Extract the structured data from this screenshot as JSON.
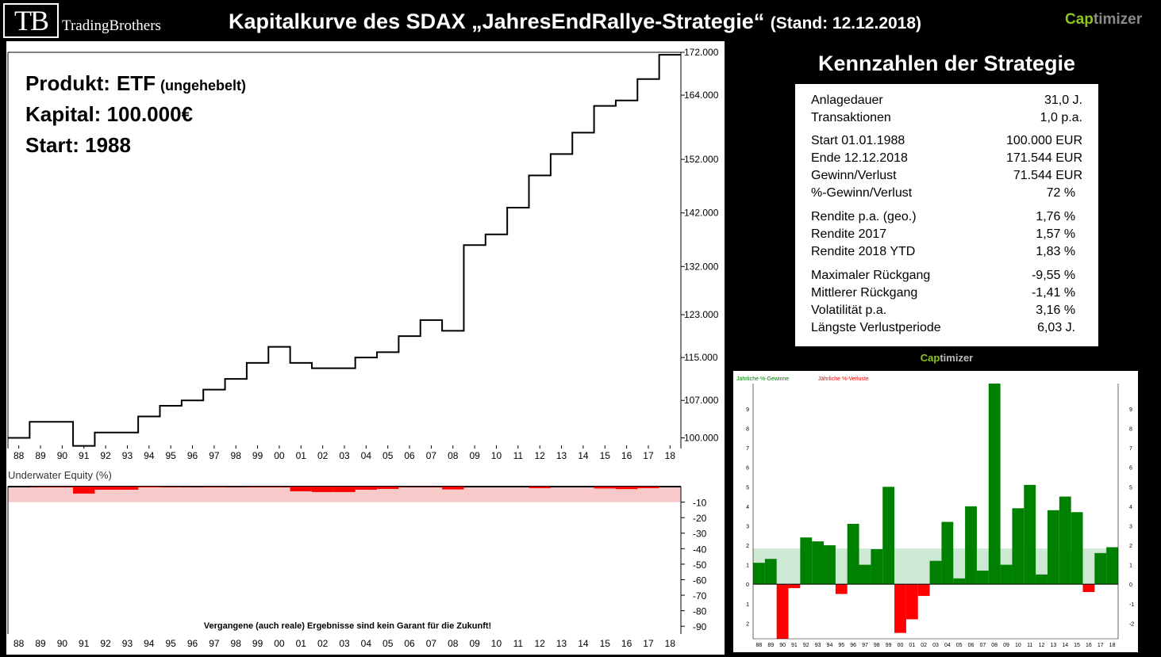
{
  "header": {
    "logo_mark": "TB",
    "logo_name": "TradingBrothers",
    "title": "Kapitalkurve des SDAX „JahresEndRallye-Strategie“",
    "stand": "(Stand: 12.12.2018)",
    "brand_cap": "Cap",
    "brand_rest": "timizer"
  },
  "info": {
    "product_label": "Produkt:",
    "product_value": "ETF",
    "product_note": "(ungehebelt)",
    "capital": "Kapital: 100.000€",
    "start": "Start: 1988"
  },
  "kennzahlen": {
    "title": "Kennzahlen der Strategie",
    "rows": [
      {
        "label": "Anlagedauer",
        "value": "31,0 J."
      },
      {
        "label": "Transaktionen",
        "value": "1,0 p.a."
      },
      {
        "label": "Start  01.01.1988",
        "value": "100.000 EUR"
      },
      {
        "label": "Ende 12.12.2018",
        "value": "171.544 EUR"
      },
      {
        "label": "Gewinn/Verlust",
        "value": "71.544 EUR"
      },
      {
        "label": "%-Gewinn/Verlust",
        "value": "72 %  "
      },
      {
        "label": "Rendite p.a. (geo.)",
        "value": "1,76 %  "
      },
      {
        "label": "Rendite 2017",
        "value": "1,57 %  "
      },
      {
        "label": "Rendite 2018 YTD",
        "value": "1,83 %  "
      },
      {
        "label": "Maximaler Rückgang",
        "value": "-9,55 %  "
      },
      {
        "label": "Mittlerer Rückgang",
        "value": "-1,41 %  "
      },
      {
        "label": "Volatilität p.a.",
        "value": "3,16 %  "
      },
      {
        "label": "Längste Verlustperiode",
        "value": "6,03 J.  "
      }
    ],
    "brand_cap": "Cap",
    "brand_rest": "timizer"
  },
  "chart_data": [
    {
      "type": "line",
      "name": "equity",
      "x": [
        "88",
        "89",
        "90",
        "91",
        "92",
        "93",
        "94",
        "95",
        "96",
        "97",
        "98",
        "99",
        "00",
        "01",
        "02",
        "03",
        "04",
        "05",
        "06",
        "07",
        "08",
        "09",
        "10",
        "11",
        "12",
        "13",
        "14",
        "15",
        "16",
        "17",
        "18"
      ],
      "values": [
        100000,
        103000,
        103000,
        98500,
        101000,
        101000,
        104000,
        106000,
        107000,
        109000,
        111000,
        114000,
        117000,
        114000,
        113000,
        113000,
        115000,
        116000,
        119000,
        122000,
        120000,
        136000,
        138000,
        143000,
        149000,
        153000,
        157000,
        162000,
        163000,
        167000,
        171544
      ],
      "yticks": [
        "100.000",
        "107.000",
        "115.000",
        "123.000",
        "132.000",
        "142.000",
        "152.000",
        "164.000",
        "172.000"
      ],
      "ylim": [
        98000,
        172000
      ],
      "color": "#000000"
    },
    {
      "type": "area",
      "name": "underwater",
      "title": "Underwater Equity (%)",
      "x": [
        "88",
        "89",
        "90",
        "91",
        "92",
        "93",
        "94",
        "95",
        "96",
        "97",
        "98",
        "99",
        "00",
        "01",
        "02",
        "03",
        "04",
        "05",
        "06",
        "07",
        "08",
        "09",
        "10",
        "11",
        "12",
        "13",
        "14",
        "15",
        "16",
        "17",
        "18"
      ],
      "values": [
        0,
        -0.3,
        -0.3,
        -4.5,
        -2.0,
        -2.0,
        -0.5,
        -0.3,
        -0.2,
        -0.3,
        -0.2,
        -0.3,
        -0.3,
        -3.0,
        -3.5,
        -3.5,
        -2.0,
        -1.5,
        -0.2,
        -0.2,
        -1.8,
        0,
        0,
        0,
        -1.0,
        0,
        0,
        -1.2,
        -1.6,
        -1.0,
        0
      ],
      "yticks": [
        "-10",
        "-20",
        "-30",
        "-40",
        "-50",
        "-60",
        "-70",
        "-80",
        "-90"
      ],
      "ylim": [
        -95,
        0
      ],
      "band": [
        -10,
        0
      ],
      "footnote": "Vergangene (auch reale) Ergebnisse sind kein Garant für die Zukunft!",
      "color": "#ff0000"
    },
    {
      "type": "bar",
      "name": "annual-returns",
      "legend": [
        "Jährliche %-Gewinne",
        "Jährliche %-Verluste"
      ],
      "categories": [
        "88",
        "89",
        "90",
        "91",
        "92",
        "93",
        "94",
        "95",
        "96",
        "97",
        "98",
        "99",
        "00",
        "01",
        "02",
        "03",
        "04",
        "05",
        "06",
        "07",
        "08",
        "09",
        "10",
        "11",
        "12",
        "13",
        "14",
        "15",
        "16",
        "17",
        "18"
      ],
      "values": [
        1.1,
        1.3,
        -2.8,
        -0.2,
        2.4,
        2.2,
        2.0,
        -0.5,
        3.1,
        1.0,
        1.8,
        5.0,
        -2.5,
        -1.8,
        -0.6,
        1.2,
        3.2,
        0.3,
        4.0,
        0.7,
        10.5,
        1.0,
        3.9,
        5.1,
        0.5,
        3.8,
        4.5,
        3.7,
        -0.4,
        1.6,
        1.9
      ],
      "average": 1.83,
      "yticks": [
        "-2",
        "-1",
        "0",
        "1",
        "2",
        "3",
        "4",
        "5",
        "6",
        "7",
        "8",
        "9"
      ],
      "ylim": [
        -2.8,
        10.3
      ],
      "colors": {
        "gain": "#008000",
        "loss": "#ff0000",
        "band": "#cde9d4"
      }
    }
  ]
}
